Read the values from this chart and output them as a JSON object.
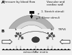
{
  "bg_color": "#f0f0f0",
  "panel_a_label": "A",
  "panel_b_label": "B",
  "text_pressure": "Pressure by blood flow",
  "text_vascular": "Vascular and\ncardiac wall",
  "text_stretch": "1. Stretch stimuli",
  "text_shear": "2. Shear stimuli",
  "text_ecm": "extracellular matrix",
  "wall_fill": "#c8c8c8",
  "wall_edge": "#888888",
  "wall_inner": "#e0e0e0",
  "arrow_fill": "#ffffff",
  "arrow_edge": "#333333",
  "sq_color": "#222222",
  "cell_color": "#444444",
  "text_color": "#111111",
  "line_color": "#333333"
}
